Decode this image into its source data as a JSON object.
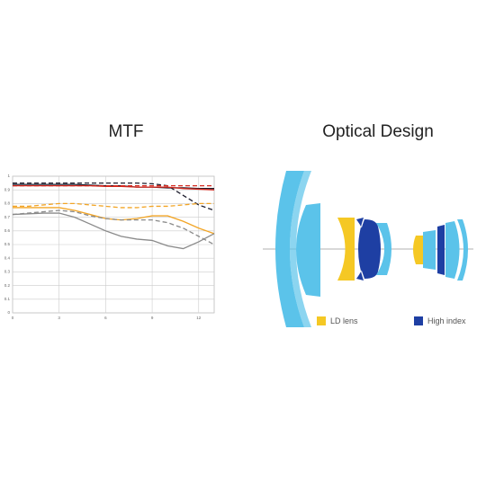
{
  "chart_data": {
    "type": "line",
    "title": "MTF",
    "x": [
      0,
      1,
      2,
      3,
      4,
      5,
      6,
      7,
      8,
      9,
      10,
      11,
      12,
      13
    ],
    "xlim": [
      0,
      13
    ],
    "xticks": [
      0,
      3,
      6,
      9,
      12
    ],
    "ylim": [
      0,
      1
    ],
    "yticks": [
      0,
      0.1,
      0.2,
      0.3,
      0.4,
      0.5,
      0.6,
      0.7,
      0.8,
      0.9,
      1
    ],
    "grid": true,
    "series": [
      {
        "color": "#1c1c2c",
        "dashed": false,
        "values": [
          0.94,
          0.94,
          0.94,
          0.94,
          0.94,
          0.935,
          0.93,
          0.93,
          0.92,
          0.92,
          0.915,
          0.915,
          0.91,
          0.91
        ]
      },
      {
        "color": "#1c1c2c",
        "dashed": true,
        "values": [
          0.95,
          0.95,
          0.95,
          0.95,
          0.95,
          0.95,
          0.95,
          0.95,
          0.95,
          0.945,
          0.93,
          0.86,
          0.79,
          0.75
        ]
      },
      {
        "color": "#d42a20",
        "dashed": false,
        "values": [
          0.93,
          0.93,
          0.93,
          0.93,
          0.93,
          0.93,
          0.925,
          0.925,
          0.92,
          0.92,
          0.92,
          0.91,
          0.905,
          0.9
        ]
      },
      {
        "color": "#d42a20",
        "dashed": true,
        "values": [
          0.93,
          0.93,
          0.93,
          0.93,
          0.93,
          0.93,
          0.93,
          0.93,
          0.93,
          0.93,
          0.93,
          0.93,
          0.93,
          0.93
        ]
      },
      {
        "color": "#f2a526",
        "dashed": false,
        "values": [
          0.77,
          0.77,
          0.77,
          0.77,
          0.75,
          0.72,
          0.69,
          0.68,
          0.69,
          0.71,
          0.71,
          0.67,
          0.62,
          0.58
        ]
      },
      {
        "color": "#f2a526",
        "dashed": true,
        "values": [
          0.78,
          0.78,
          0.79,
          0.8,
          0.8,
          0.79,
          0.78,
          0.77,
          0.77,
          0.78,
          0.78,
          0.79,
          0.8,
          0.8
        ]
      },
      {
        "color": "#8a8a8a",
        "dashed": false,
        "values": [
          0.72,
          0.725,
          0.73,
          0.73,
          0.7,
          0.65,
          0.6,
          0.56,
          0.54,
          0.53,
          0.49,
          0.47,
          0.52,
          0.58
        ]
      },
      {
        "color": "#8a8a8a",
        "dashed": true,
        "values": [
          0.72,
          0.73,
          0.74,
          0.75,
          0.74,
          0.71,
          0.69,
          0.68,
          0.68,
          0.68,
          0.66,
          0.62,
          0.56,
          0.5
        ]
      }
    ]
  },
  "optical_design": {
    "title": "Optical Design",
    "legend": [
      "LD lens",
      "High index"
    ]
  }
}
